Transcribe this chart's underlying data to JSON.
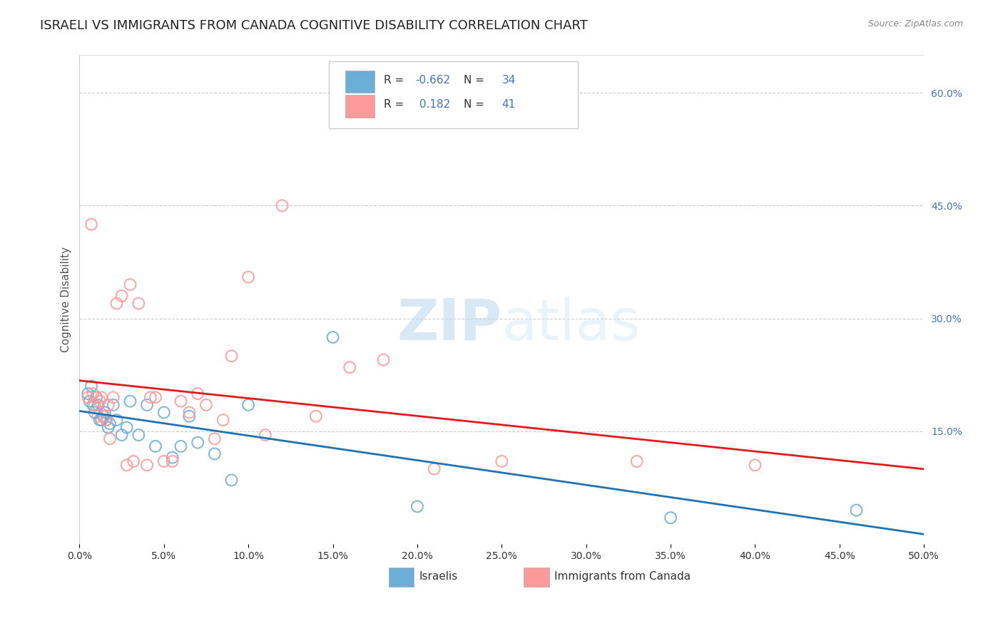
{
  "title": "ISRAELI VS IMMIGRANTS FROM CANADA COGNITIVE DISABILITY CORRELATION CHART",
  "source": "Source: ZipAtlas.com",
  "xlabel": "",
  "ylabel": "Cognitive Disability",
  "legend_label_1": "Israelis",
  "legend_label_2": "Immigrants from Canada",
  "R1": -0.662,
  "N1": 34,
  "R2": 0.182,
  "N2": 41,
  "xlim": [
    0.0,
    0.5
  ],
  "ylim": [
    0.0,
    0.65
  ],
  "xticks": [
    0.0,
    0.05,
    0.1,
    0.15,
    0.2,
    0.25,
    0.3,
    0.35,
    0.4,
    0.45,
    0.5
  ],
  "yticks_right": [
    0.15,
    0.3,
    0.45,
    0.6
  ],
  "yticks_right_labels": [
    "15.0%",
    "30.0%",
    "45.0%",
    "60.0%"
  ],
  "color1": "#6baed6",
  "color2": "#fb9a99",
  "line_color1": "#2171b5",
  "line_color2": "#e31a1c",
  "background_color": "#ffffff",
  "watermark_zip": "ZIP",
  "watermark_atlas": "atlas",
  "title_fontsize": 13,
  "axis_label_fontsize": 11,
  "tick_label_fontsize": 10,
  "israelis_x": [
    0.005,
    0.006,
    0.007,
    0.008,
    0.009,
    0.01,
    0.011,
    0.012,
    0.013,
    0.014,
    0.015,
    0.016,
    0.017,
    0.018,
    0.02,
    0.022,
    0.025,
    0.028,
    0.03,
    0.035,
    0.04,
    0.045,
    0.05,
    0.055,
    0.06,
    0.065,
    0.07,
    0.08,
    0.09,
    0.1,
    0.15,
    0.2,
    0.35,
    0.46
  ],
  "israelis_y": [
    0.2,
    0.19,
    0.21,
    0.185,
    0.175,
    0.195,
    0.185,
    0.165,
    0.165,
    0.17,
    0.175,
    0.165,
    0.155,
    0.16,
    0.185,
    0.165,
    0.145,
    0.155,
    0.19,
    0.145,
    0.185,
    0.13,
    0.175,
    0.115,
    0.13,
    0.17,
    0.135,
    0.12,
    0.085,
    0.185,
    0.275,
    0.05,
    0.035,
    0.045
  ],
  "canada_x": [
    0.005,
    0.007,
    0.008,
    0.009,
    0.01,
    0.011,
    0.012,
    0.013,
    0.015,
    0.016,
    0.017,
    0.018,
    0.02,
    0.022,
    0.025,
    0.028,
    0.03,
    0.032,
    0.035,
    0.04,
    0.042,
    0.045,
    0.05,
    0.055,
    0.06,
    0.065,
    0.07,
    0.075,
    0.08,
    0.085,
    0.09,
    0.1,
    0.11,
    0.12,
    0.14,
    0.16,
    0.18,
    0.21,
    0.25,
    0.33,
    0.4
  ],
  "canada_y": [
    0.195,
    0.425,
    0.2,
    0.185,
    0.195,
    0.17,
    0.19,
    0.195,
    0.17,
    0.165,
    0.185,
    0.14,
    0.195,
    0.32,
    0.33,
    0.105,
    0.345,
    0.11,
    0.32,
    0.105,
    0.195,
    0.195,
    0.11,
    0.11,
    0.19,
    0.175,
    0.2,
    0.185,
    0.14,
    0.165,
    0.25,
    0.355,
    0.145,
    0.45,
    0.17,
    0.235,
    0.245,
    0.1,
    0.11,
    0.11,
    0.105
  ]
}
